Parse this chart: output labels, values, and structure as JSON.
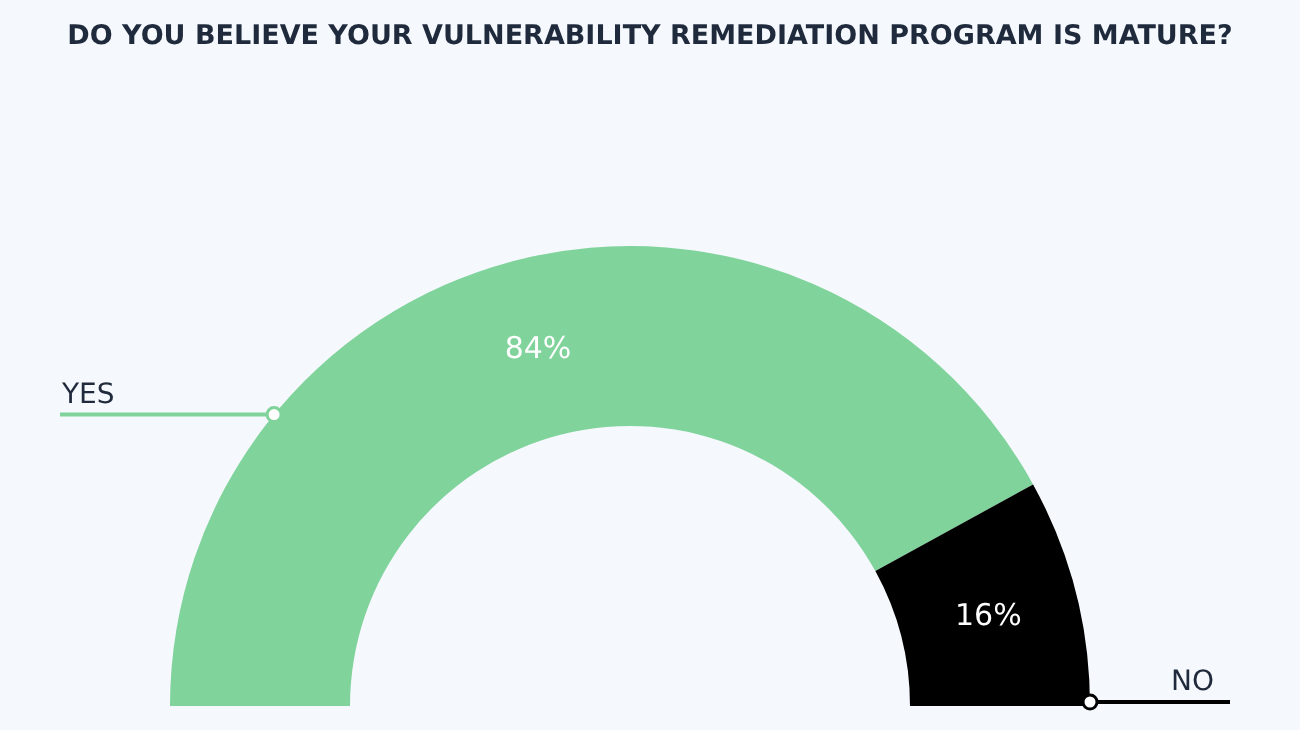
{
  "chart_data": {
    "type": "donut",
    "title": "DO YOU BELIEVE YOUR VULNERABILITY REMEDIATION PROGRAM IS MATURE?",
    "categories": [
      "YES",
      "NO"
    ],
    "values": [
      84,
      16
    ],
    "colors": [
      "#7fd39b",
      "#000000"
    ],
    "value_labels": [
      "84%",
      "16%"
    ]
  }
}
